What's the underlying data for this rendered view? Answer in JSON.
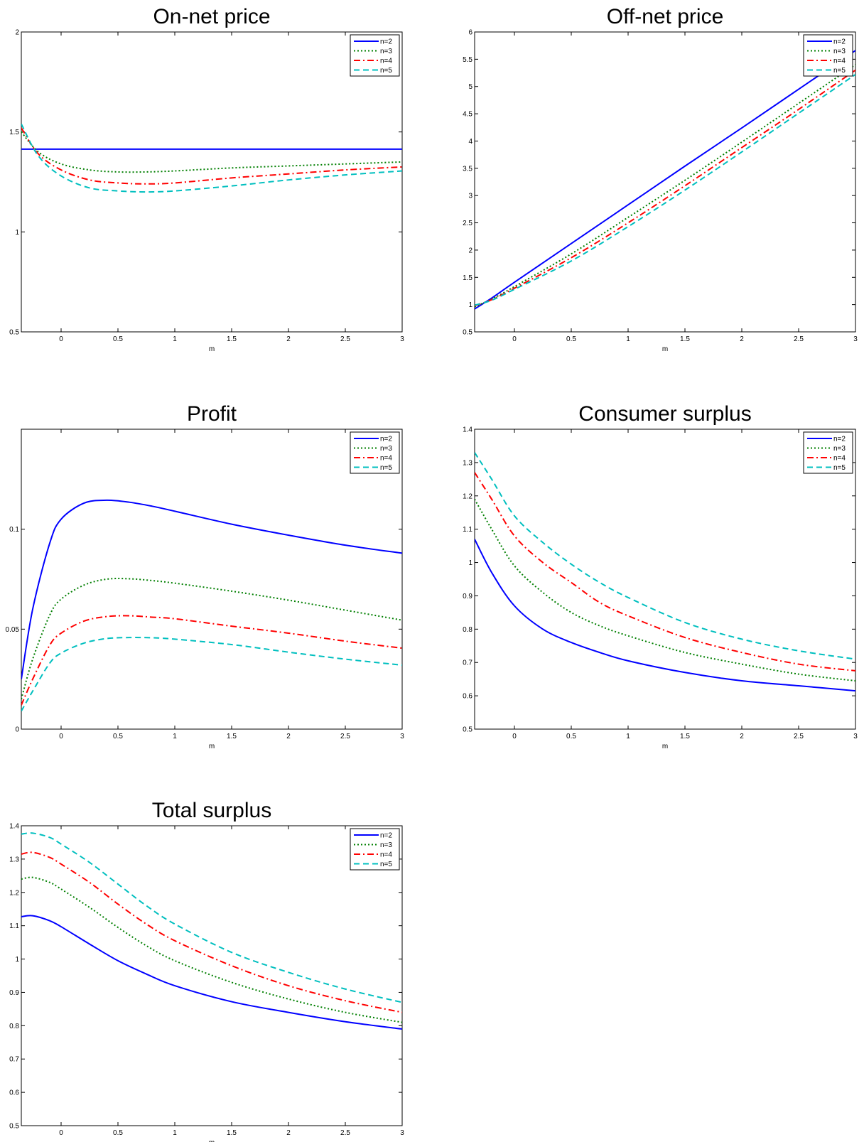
{
  "figure": {
    "legend_position": "top-right",
    "series_styles": [
      {
        "name": "n=2",
        "color": "#0000ff",
        "dash": "solid"
      },
      {
        "name": "n=3",
        "color": "#007f00",
        "dash": "dotted"
      },
      {
        "name": "n=4",
        "color": "#ff0000",
        "dash": "dashdot"
      },
      {
        "name": "n=5",
        "color": "#00bfbf",
        "dash": "dashed"
      }
    ]
  },
  "chart_data": [
    {
      "id": "on-net-price",
      "type": "line",
      "title": "On-net price",
      "xlabel": "m",
      "ylabel": "",
      "xlim": [
        -0.35,
        3
      ],
      "ylim": [
        0.5,
        2
      ],
      "xticks": [
        0,
        0.5,
        1,
        1.5,
        2,
        2.5,
        3
      ],
      "xtick_labels": [
        "0",
        "0.5",
        "1",
        "1.5",
        "2",
        "2.5",
        "3"
      ],
      "yticks": [
        0.5,
        1,
        1.5,
        2
      ],
      "ytick_labels": [
        "0.5",
        "1",
        "1.5",
        "2"
      ],
      "grid": false,
      "legend": "top-right",
      "x": [
        -0.35,
        -0.2,
        0,
        0.25,
        0.5,
        0.75,
        1,
        1.5,
        2,
        2.5,
        3
      ],
      "series": [
        {
          "name": "n=2",
          "values": [
            1.414,
            1.414,
            1.414,
            1.414,
            1.414,
            1.414,
            1.414,
            1.414,
            1.414,
            1.414,
            1.414
          ]
        },
        {
          "name": "n=3",
          "values": [
            1.5,
            1.4,
            1.34,
            1.31,
            1.3,
            1.3,
            1.305,
            1.32,
            1.33,
            1.34,
            1.35
          ]
        },
        {
          "name": "n=4",
          "values": [
            1.52,
            1.39,
            1.31,
            1.26,
            1.245,
            1.24,
            1.245,
            1.27,
            1.29,
            1.31,
            1.325
          ]
        },
        {
          "name": "n=5",
          "values": [
            1.54,
            1.38,
            1.28,
            1.22,
            1.205,
            1.2,
            1.205,
            1.23,
            1.26,
            1.285,
            1.305
          ]
        }
      ]
    },
    {
      "id": "off-net-price",
      "type": "line",
      "title": "Off-net price",
      "xlabel": "m",
      "ylabel": "",
      "xlim": [
        -0.35,
        3
      ],
      "ylim": [
        0.5,
        6
      ],
      "xticks": [
        0,
        0.5,
        1,
        1.5,
        2,
        2.5,
        3
      ],
      "xtick_labels": [
        "0",
        "0.5",
        "1",
        "1.5",
        "2",
        "2.5",
        "3"
      ],
      "yticks": [
        0.5,
        1,
        1.5,
        2,
        2.5,
        3,
        3.5,
        4,
        4.5,
        5,
        5.5,
        6
      ],
      "ytick_labels": [
        "0.5",
        "1",
        "1.5",
        "2",
        "2.5",
        "3",
        "3.5",
        "4",
        "4.5",
        "5",
        "5.5",
        "6"
      ],
      "grid": false,
      "legend": "top-right",
      "x": [
        -0.35,
        -0.2,
        0,
        0.5,
        1,
        1.5,
        2,
        2.5,
        3
      ],
      "series": [
        {
          "name": "n=2",
          "values": [
            0.92,
            1.12,
            1.41,
            2.12,
            2.83,
            3.54,
            4.24,
            4.95,
            5.66
          ]
        },
        {
          "name": "n=3",
          "values": [
            0.96,
            1.1,
            1.33,
            1.93,
            2.6,
            3.28,
            3.98,
            4.69,
            5.4
          ]
        },
        {
          "name": "n=4",
          "values": [
            0.98,
            1.09,
            1.3,
            1.86,
            2.5,
            3.18,
            3.88,
            4.58,
            5.3
          ]
        },
        {
          "name": "n=5",
          "values": [
            0.99,
            1.08,
            1.28,
            1.8,
            2.43,
            3.1,
            3.8,
            4.51,
            5.22
          ]
        }
      ]
    },
    {
      "id": "profit",
      "type": "line",
      "title": "Profit",
      "xlabel": "m",
      "ylabel": "",
      "xlim": [
        -0.35,
        3
      ],
      "ylim": [
        0,
        0.15
      ],
      "xticks": [
        0,
        0.5,
        1,
        1.5,
        2,
        2.5,
        3
      ],
      "xtick_labels": [
        "0",
        "0.5",
        "1",
        "1.5",
        "2",
        "2.5",
        "3"
      ],
      "yticks": [
        0,
        0.05,
        0.1
      ],
      "ytick_labels": [
        "0",
        "0.05",
        "0.1"
      ],
      "grid": false,
      "legend": "top-right",
      "x": [
        -0.35,
        -0.25,
        -0.1,
        0,
        0.2,
        0.4,
        0.6,
        0.8,
        1,
        1.5,
        2,
        2.5,
        3
      ],
      "series": [
        {
          "name": "n=2",
          "values": [
            0.025,
            0.06,
            0.093,
            0.105,
            0.113,
            0.1145,
            0.1135,
            0.1115,
            0.109,
            0.1025,
            0.097,
            0.092,
            0.088
          ]
        },
        {
          "name": "n=3",
          "values": [
            0.015,
            0.035,
            0.057,
            0.065,
            0.072,
            0.075,
            0.0752,
            0.0743,
            0.073,
            0.069,
            0.0645,
            0.0595,
            0.0545
          ]
        },
        {
          "name": "n=4",
          "values": [
            0.012,
            0.025,
            0.042,
            0.048,
            0.054,
            0.0563,
            0.0567,
            0.056,
            0.0552,
            0.0515,
            0.048,
            0.044,
            0.0405
          ]
        },
        {
          "name": "n=5",
          "values": [
            0.009,
            0.019,
            0.033,
            0.038,
            0.043,
            0.0453,
            0.0458,
            0.0457,
            0.045,
            0.0423,
            0.0385,
            0.035,
            0.032
          ]
        }
      ]
    },
    {
      "id": "consumer-surplus",
      "type": "line",
      "title": "Consumer surplus",
      "xlabel": "m",
      "ylabel": "",
      "xlim": [
        -0.35,
        3
      ],
      "ylim": [
        0.5,
        1.4
      ],
      "xticks": [
        0,
        0.5,
        1,
        1.5,
        2,
        2.5,
        3
      ],
      "xtick_labels": [
        "0",
        "0.5",
        "1",
        "1.5",
        "2",
        "2.5",
        "3"
      ],
      "yticks": [
        0.5,
        0.6,
        0.7,
        0.8,
        0.9,
        1,
        1.1,
        1.2,
        1.3,
        1.4
      ],
      "ytick_labels": [
        "0.5",
        "0.6",
        "0.7",
        "0.8",
        "0.9",
        "1",
        "1.1",
        "1.2",
        "1.3",
        "1.4"
      ],
      "grid": false,
      "legend": "top-right",
      "x": [
        -0.35,
        -0.2,
        0,
        0.25,
        0.5,
        0.75,
        1,
        1.5,
        2,
        2.5,
        3
      ],
      "series": [
        {
          "name": "n=2",
          "values": [
            1.07,
            0.97,
            0.87,
            0.8,
            0.76,
            0.73,
            0.705,
            0.67,
            0.645,
            0.63,
            0.615
          ]
        },
        {
          "name": "n=3",
          "values": [
            1.19,
            1.1,
            0.99,
            0.91,
            0.85,
            0.81,
            0.78,
            0.73,
            0.695,
            0.665,
            0.645
          ]
        },
        {
          "name": "n=4",
          "values": [
            1.27,
            1.19,
            1.08,
            1.0,
            0.94,
            0.88,
            0.84,
            0.775,
            0.73,
            0.695,
            0.675
          ]
        },
        {
          "name": "n=5",
          "values": [
            1.33,
            1.25,
            1.14,
            1.06,
            0.995,
            0.94,
            0.895,
            0.82,
            0.77,
            0.735,
            0.71
          ]
        }
      ]
    },
    {
      "id": "total-surplus",
      "type": "line",
      "title": "Total surplus",
      "xlabel": "m",
      "ylabel": "",
      "xlim": [
        -0.35,
        3
      ],
      "ylim": [
        0.5,
        1.4
      ],
      "xticks": [
        0,
        0.5,
        1,
        1.5,
        2,
        2.5,
        3
      ],
      "xtick_labels": [
        "0",
        "0.5",
        "1",
        "1.5",
        "2",
        "2.5",
        "3"
      ],
      "yticks": [
        0.5,
        0.6,
        0.7,
        0.8,
        0.9,
        1,
        1.1,
        1.2,
        1.3,
        1.4
      ],
      "ytick_labels": [
        "0.5",
        "0.6",
        "0.7",
        "0.8",
        "0.9",
        "1",
        "1.1",
        "1.2",
        "1.3",
        "1.4"
      ],
      "grid": false,
      "legend": "top-right",
      "x": [
        -0.35,
        -0.25,
        -0.1,
        0,
        0.25,
        0.5,
        0.75,
        1,
        1.5,
        2,
        2.5,
        3
      ],
      "series": [
        {
          "name": "n=2",
          "values": [
            1.127,
            1.13,
            1.115,
            1.097,
            1.045,
            0.995,
            0.955,
            0.92,
            0.872,
            0.84,
            0.812,
            0.79
          ]
        },
        {
          "name": "n=3",
          "values": [
            1.24,
            1.245,
            1.23,
            1.21,
            1.155,
            1.095,
            1.04,
            0.995,
            0.93,
            0.88,
            0.84,
            0.81
          ]
        },
        {
          "name": "n=4",
          "values": [
            1.315,
            1.32,
            1.305,
            1.285,
            1.23,
            1.165,
            1.105,
            1.055,
            0.98,
            0.92,
            0.875,
            0.84
          ]
        },
        {
          "name": "n=5",
          "values": [
            1.375,
            1.378,
            1.365,
            1.345,
            1.29,
            1.225,
            1.16,
            1.105,
            1.02,
            0.96,
            0.91,
            0.87
          ]
        }
      ]
    }
  ]
}
